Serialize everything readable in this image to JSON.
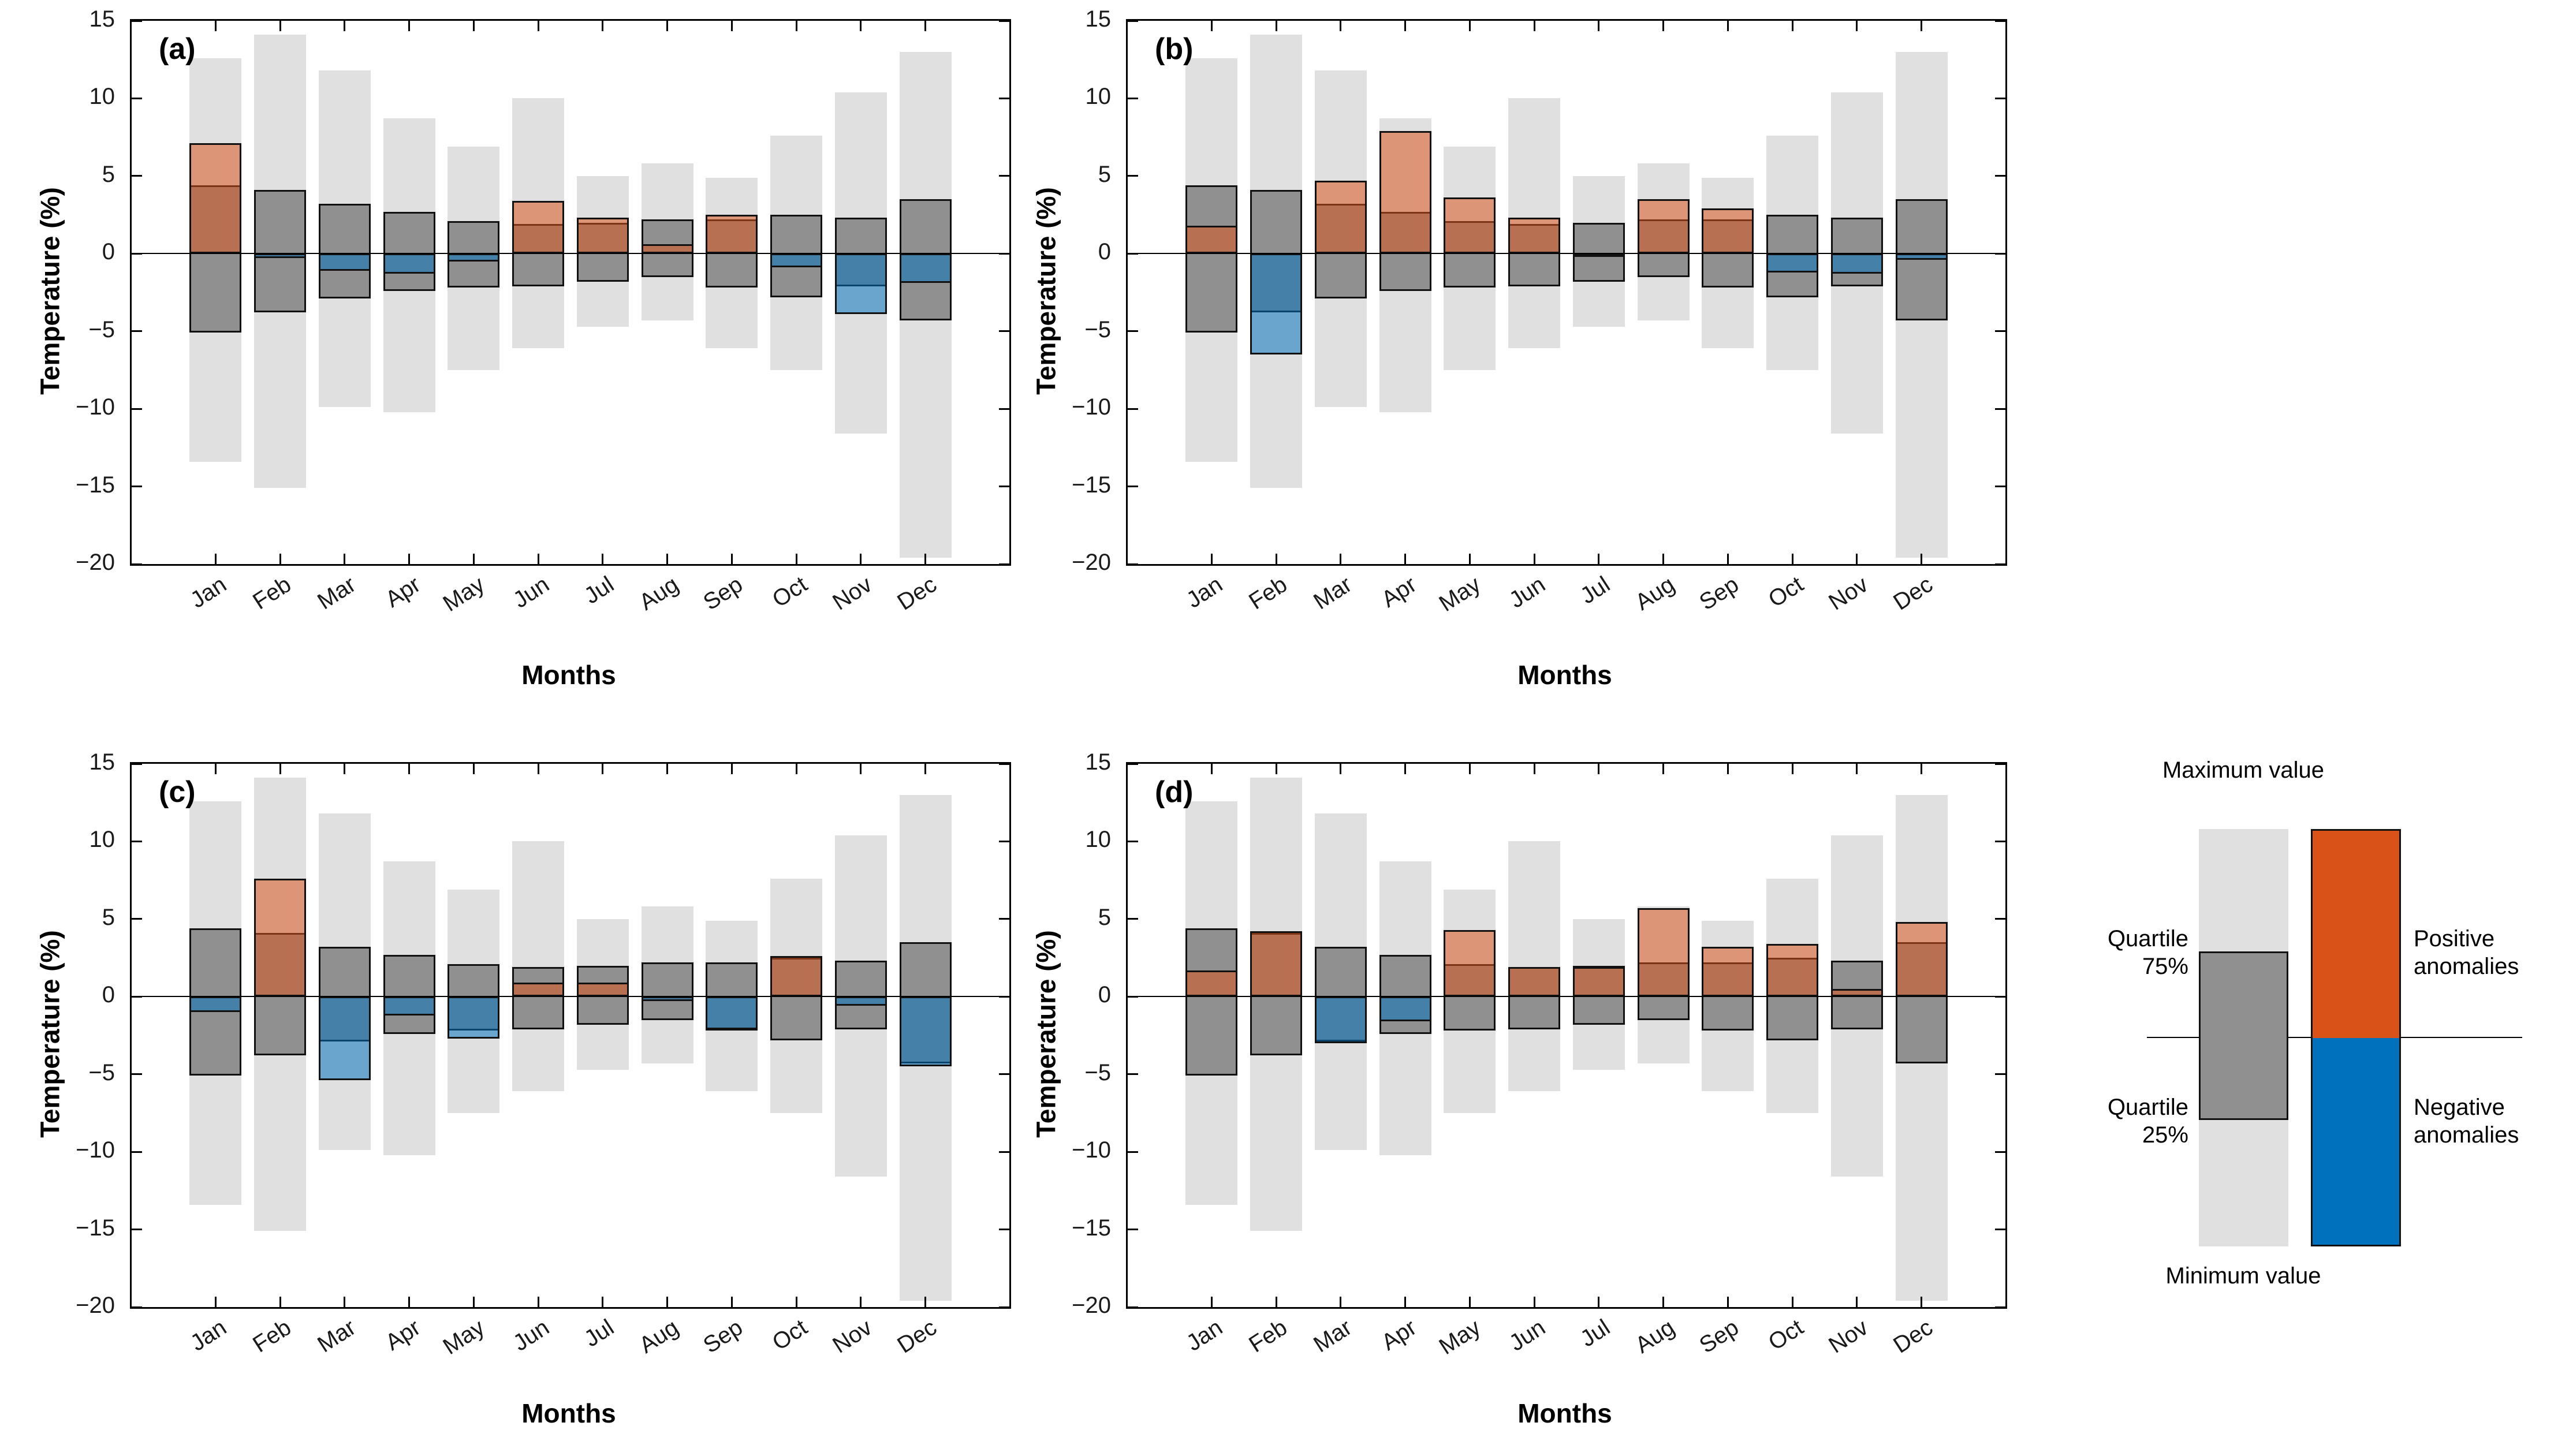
{
  "chart_data": {
    "type": "bar",
    "title": "",
    "xlabel": "Months",
    "ylabel": "Temperature (%)",
    "ylim": [
      -20,
      15
    ],
    "yticks": [
      15,
      10,
      5,
      0,
      -5,
      -10,
      -15,
      -20
    ],
    "grid": false,
    "categories": [
      "Jan",
      "Feb",
      "Mar",
      "Apr",
      "May",
      "Jun",
      "Jul",
      "Aug",
      "Sep",
      "Oct",
      "Nov",
      "Dec"
    ],
    "range_stats": {
      "maximum": [
        12.6,
        14.1,
        11.8,
        8.7,
        6.9,
        10.0,
        5.0,
        5.8,
        4.9,
        7.6,
        10.4,
        13.0
      ],
      "minimum": [
        -13.4,
        -15.1,
        -9.9,
        -10.2,
        -7.5,
        -6.1,
        -4.7,
        -4.3,
        -6.1,
        -7.5,
        -11.6,
        -19.6
      ],
      "quartile75": [
        4.4,
        4.1,
        3.2,
        2.7,
        2.1,
        1.9,
        2.0,
        2.2,
        2.2,
        2.5,
        2.3,
        3.5
      ],
      "quartile25": [
        -5.1,
        -3.8,
        -2.9,
        -2.4,
        -2.2,
        -2.1,
        -1.8,
        -1.5,
        -2.2,
        -2.8,
        -2.1,
        -4.3
      ]
    },
    "panels": [
      {
        "label": "(a)",
        "anomalies": [
          7.1,
          -0.3,
          -1.1,
          -1.3,
          -0.5,
          3.4,
          2.3,
          0.6,
          2.5,
          -0.9,
          -3.9,
          -1.9
        ]
      },
      {
        "label": "(b)",
        "anomalies": [
          1.8,
          -6.5,
          4.7,
          7.9,
          3.6,
          2.3,
          -0.2,
          3.5,
          2.9,
          -1.2,
          -1.3,
          -0.4
        ]
      },
      {
        "label": "(c)",
        "anomalies": [
          -1.0,
          7.6,
          -5.4,
          -1.2,
          -2.7,
          0.9,
          0.9,
          -0.3,
          -2.1,
          2.6,
          -0.6,
          -4.5
        ]
      },
      {
        "label": "(d)",
        "anomalies": [
          1.7,
          4.2,
          -3.0,
          -1.6,
          4.3,
          1.9,
          1.9,
          5.7,
          3.2,
          3.4,
          0.5,
          4.8
        ]
      }
    ],
    "legend_position": "bottom-right"
  },
  "legend": {
    "maximum": "Maximum value",
    "minimum": "Minimum value",
    "quartile75": "Quartile 75%",
    "quartile25": "Quartile 25%",
    "positive": "Positive anomalies",
    "negative": "Negative anomalies"
  },
  "colors": {
    "range_fill": "#e0e0e0",
    "quartile_fill": "#909090",
    "positive": "#d95319",
    "negative": "#0072bd",
    "outline": "#111111",
    "anomaly_overlay_alpha": 0.53
  }
}
